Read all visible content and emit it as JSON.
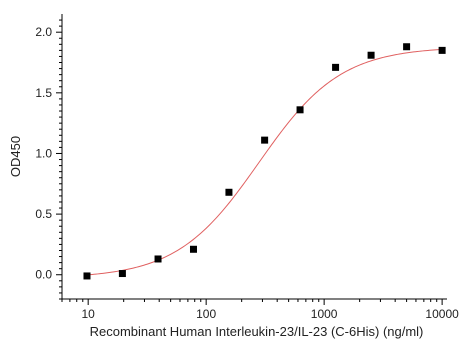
{
  "chart_data": {
    "type": "scatter",
    "title": "",
    "xlabel": "Recombinant Human Interleukin-23/IL-23 (C-6His) (ng/ml)",
    "ylabel": "OD450",
    "x_scale": "log",
    "xlim": [
      6,
      11000
    ],
    "ylim": [
      -0.2,
      2.15
    ],
    "x_ticks": [
      10,
      100,
      1000,
      10000
    ],
    "x_tick_labels": [
      "10",
      "100",
      "1000",
      "10000"
    ],
    "y_ticks": [
      0.0,
      0.5,
      1.0,
      1.5,
      2.0
    ],
    "y_tick_labels": [
      "0.0",
      "0.5",
      "1.0",
      "1.5",
      "2.0"
    ],
    "grid": false,
    "series": [
      {
        "type": "scatter",
        "marker": "square",
        "color": "#000000",
        "x": [
          9.77,
          19.5,
          39.1,
          78.1,
          156,
          313,
          625,
          1250,
          2500,
          5000,
          10000
        ],
        "y": [
          -0.01,
          0.01,
          0.13,
          0.21,
          0.68,
          1.11,
          1.36,
          1.71,
          1.81,
          1.88,
          1.85
        ]
      },
      {
        "type": "line",
        "color": "#e06060",
        "fit": {
          "model": "4PL",
          "bottom": -0.03,
          "top": 1.88,
          "ec50": 280,
          "hill": 1.25,
          "x_range": [
            9.77,
            10000
          ]
        }
      }
    ]
  }
}
